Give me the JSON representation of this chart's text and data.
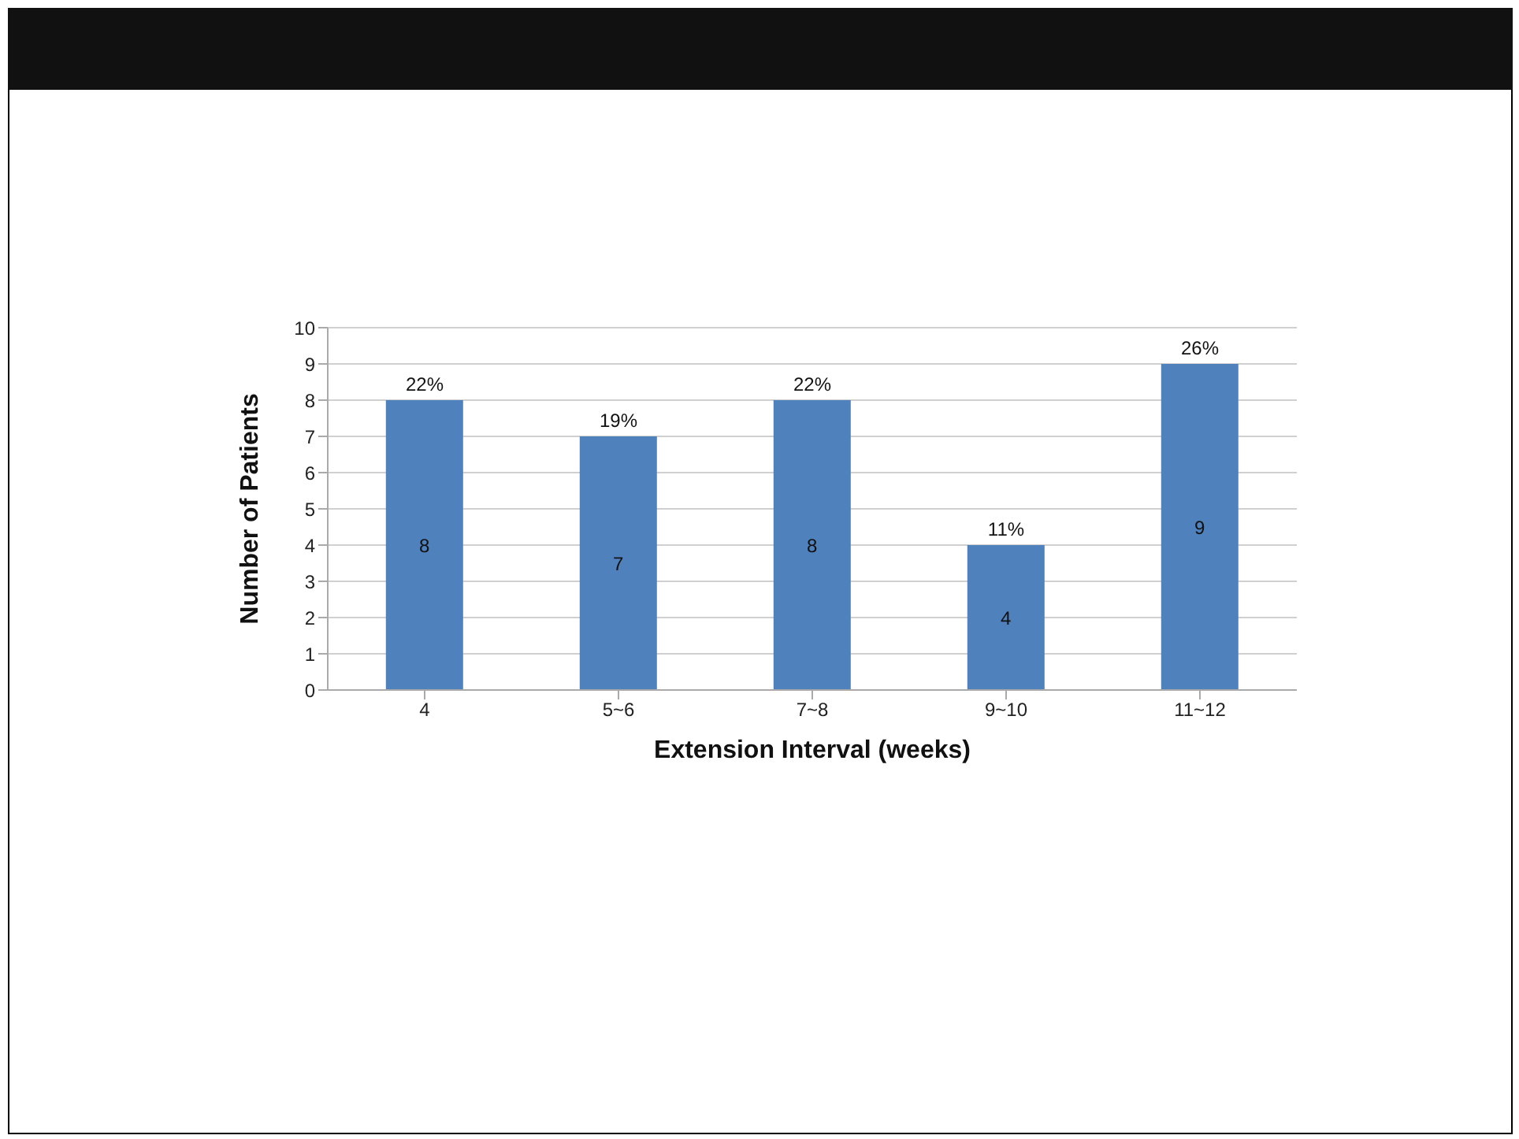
{
  "chart_data": {
    "type": "bar",
    "xlabel": "Extension Interval (weeks)",
    "ylabel": "Number of Patients",
    "categories": [
      "4",
      "5~6",
      "7~8",
      "9~10",
      "11~12"
    ],
    "values": [
      8,
      7,
      8,
      4,
      9
    ],
    "color": "#4f81bd",
    "data_labels": true,
    "annotations": [
      {
        "text": "22%",
        "x": "4",
        "y": 8
      },
      {
        "text": "19%",
        "x": "5~6",
        "y": 7
      },
      {
        "text": "22%",
        "x": "7~8",
        "y": 8
      },
      {
        "text": "11%",
        "x": "9~10",
        "y": 4
      },
      {
        "text": "26%",
        "x": "11~12",
        "y": 9
      }
    ],
    "ylim": [
      0,
      10
    ],
    "yticks": [
      0,
      1,
      2,
      3,
      4,
      5,
      6,
      7,
      8,
      9,
      10
    ],
    "grid": "y"
  }
}
